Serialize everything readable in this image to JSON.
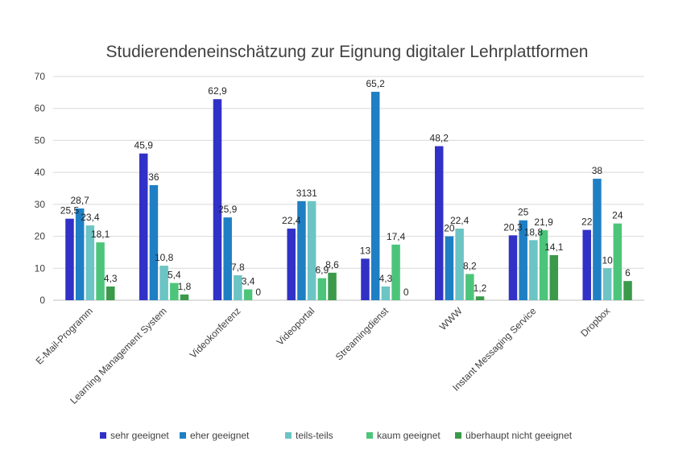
{
  "chart_data": {
    "type": "bar",
    "title": "Studierendeneinschätzung zur Eignung digitaler Lehrplattformen",
    "xlabel": "",
    "ylabel": "",
    "ylim": [
      0,
      70
    ],
    "yticks": [
      0,
      10,
      20,
      30,
      40,
      50,
      60,
      70
    ],
    "grid": true,
    "legend_position": "bottom",
    "categories": [
      "E-Mail-Programm",
      "Learning Management System",
      "Videokonferenz",
      "Videoportal",
      "Streamingdienst",
      "WWW",
      "Instant Messaging Service",
      "Dropbox"
    ],
    "series": [
      {
        "name": "sehr geeignet",
        "color": "#3131c8",
        "values": [
          25.5,
          45.9,
          62.9,
          22.4,
          13,
          48.2,
          20.3,
          22
        ],
        "labels": [
          "25,5",
          "45,9",
          "62,9",
          "22,4",
          "13",
          "48,2",
          "20,3",
          "22"
        ]
      },
      {
        "name": "eher geeignet",
        "color": "#1f7fc4",
        "values": [
          28.7,
          36,
          25.9,
          31,
          65.2,
          20,
          25,
          38
        ],
        "labels": [
          "28,7",
          "36",
          "25,9",
          "31",
          "65,2",
          "20",
          "25",
          "38"
        ]
      },
      {
        "name": "teils-teils",
        "color": "#6cc4c4",
        "values": [
          23.4,
          10.8,
          7.8,
          31,
          4.3,
          22.4,
          18.8,
          10
        ],
        "labels": [
          "23,4",
          "10,8",
          "7,8",
          "31",
          "4,3",
          "22,4",
          "18,8",
          "10"
        ]
      },
      {
        "name": "kaum geeignet",
        "color": "#4cc57a",
        "values": [
          18.1,
          5.4,
          3.4,
          6.9,
          17.4,
          8.2,
          21.9,
          24
        ],
        "labels": [
          "18,1",
          "5,4",
          "3,4",
          "6,9",
          "17,4",
          "8,2",
          "21,9",
          "24"
        ]
      },
      {
        "name": "überhaupt nicht geeignet",
        "color": "#3a9a4a",
        "values": [
          4.3,
          1.8,
          0,
          8.6,
          0,
          1.2,
          14.1,
          6
        ],
        "labels": [
          "4,3",
          "1,8",
          "0",
          "8,6",
          "0",
          "1,2",
          "14,1",
          "6"
        ]
      }
    ]
  }
}
